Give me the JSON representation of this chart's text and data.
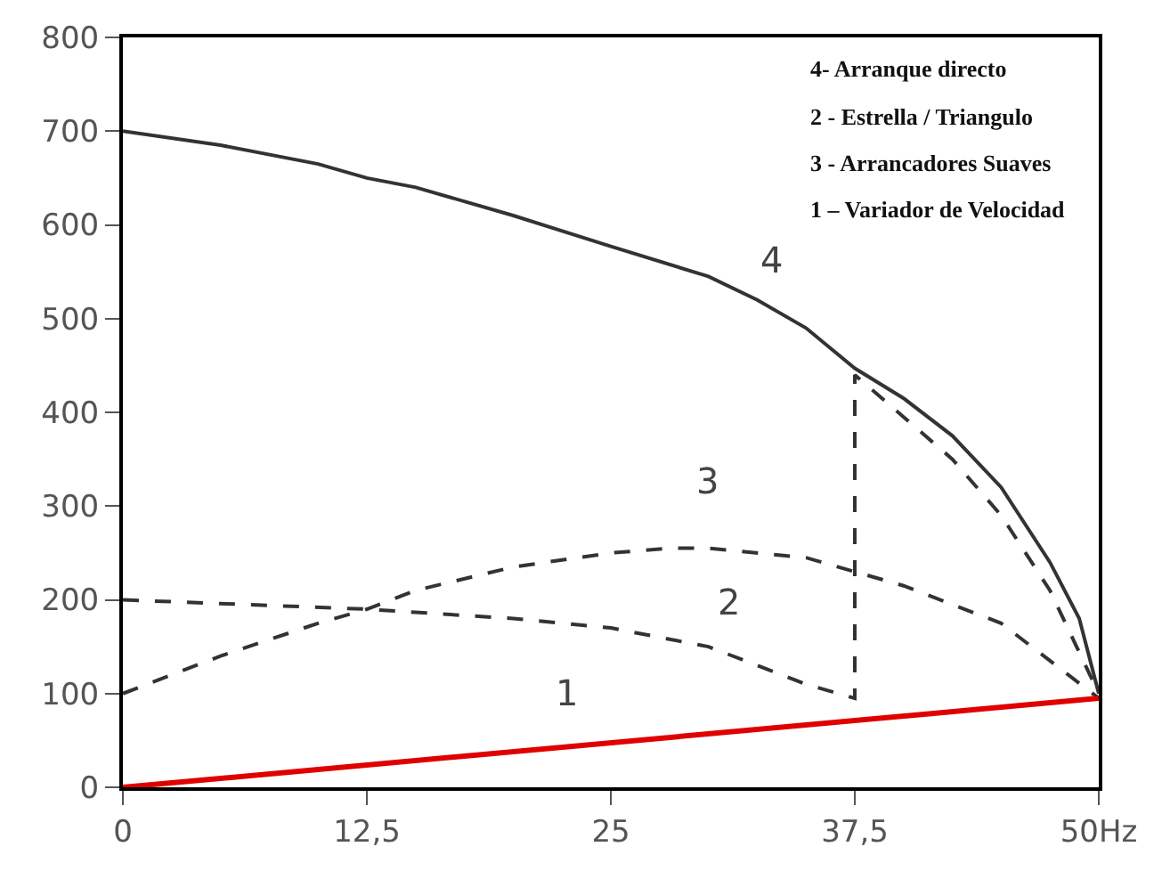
{
  "chart_data": {
    "type": "line",
    "xlim": [
      0,
      50
    ],
    "ylim": [
      0,
      800
    ],
    "xticks": [
      0,
      {
        "value": 12.5,
        "label": "12,5"
      },
      25,
      {
        "value": 37.5,
        "label": "37,5"
      },
      {
        "value": 50,
        "label": "50Hz"
      }
    ],
    "yticks": [
      0,
      100,
      200,
      300,
      400,
      500,
      600,
      700,
      800
    ],
    "marker": "none",
    "series": [
      {
        "color": "#333333",
        "line_style": "solid",
        "x": [
          0,
          5,
          10,
          12.5,
          15,
          20,
          25,
          30,
          32.5,
          35,
          37.5,
          40,
          42.5,
          45,
          47.5,
          49,
          50
        ],
        "values": [
          700,
          685,
          665,
          650,
          640,
          610,
          577,
          545,
          520,
          490,
          447,
          415,
          375,
          320,
          240,
          180,
          100
        ]
      },
      {
        "color": "#333333",
        "line_style": "dashed",
        "x": [
          0,
          12.5,
          20,
          25,
          30,
          35,
          37.5,
          37.5,
          40,
          42.5,
          45,
          47.5,
          50
        ],
        "values": [
          200,
          190,
          180,
          170,
          150,
          110,
          95,
          440,
          395,
          350,
          290,
          210,
          100
        ]
      },
      {
        "color": "#333333",
        "line_style": "dashed",
        "x": [
          0,
          5,
          10,
          12.5,
          15,
          20,
          25,
          28,
          30,
          35,
          37.5,
          40,
          42.5,
          45,
          47.5,
          50
        ],
        "values": [
          100,
          140,
          175,
          190,
          210,
          235,
          250,
          255,
          255,
          245,
          230,
          215,
          195,
          175,
          135,
          95
        ]
      },
      {
        "color": "#e00000",
        "line_style": "solid",
        "x": [
          0,
          50
        ],
        "values": [
          0,
          95
        ]
      }
    ],
    "annotations": [
      {
        "text": "4",
        "x": 32.5,
        "y": 520
      },
      {
        "text": "3",
        "x": 30,
        "y": 255
      },
      {
        "text": "2",
        "x": 30,
        "y": 150
      },
      {
        "text": "1",
        "x": 20,
        "y": 38
      },
      "4- Arranque directo",
      "2 - Estrella / Triangulo",
      "3 - Arrancadores Suaves",
      "1 – Variador de Velocidad"
    ]
  }
}
